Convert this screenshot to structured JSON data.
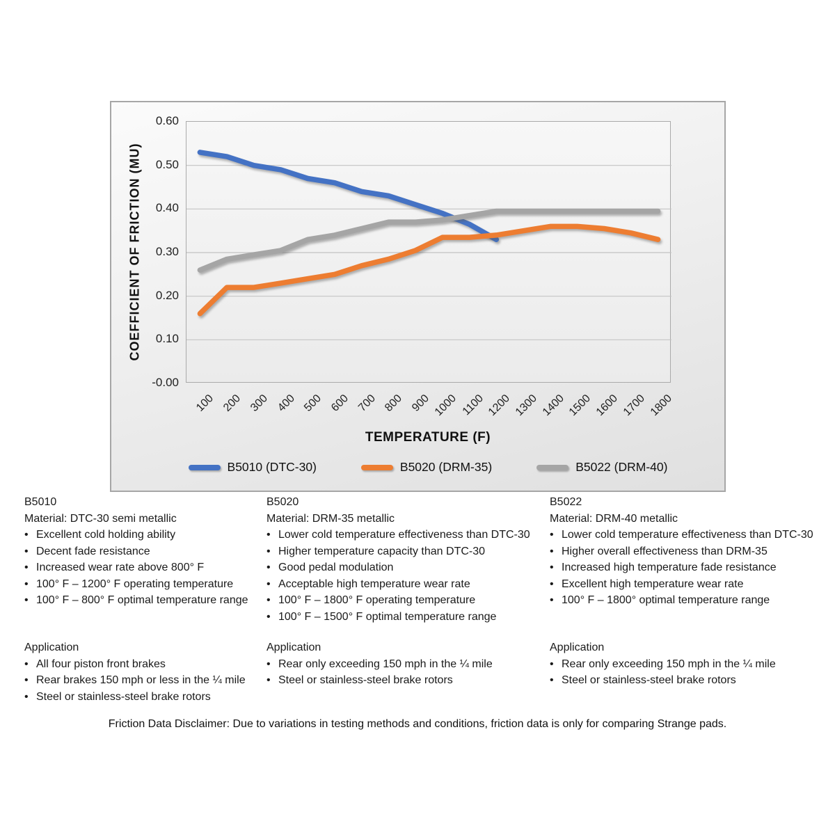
{
  "chart_data": {
    "type": "line",
    "title": "",
    "xlabel": "TEMPERATURE (F)",
    "ylabel": "COEFFICIENT OF FRICTION (MU)",
    "ylim": [
      0,
      0.6
    ],
    "ytick_step": 0.1,
    "grid": true,
    "legend_position": "bottom",
    "categories": [
      "100",
      "200",
      "300",
      "400",
      "500",
      "600",
      "700",
      "800",
      "900",
      "1000",
      "1100",
      "1200",
      "1300",
      "1400",
      "1500",
      "1600",
      "1700",
      "1800"
    ],
    "series": [
      {
        "name": "B5010 (DTC-30)",
        "color": "#4472C4",
        "values": [
          0.53,
          0.52,
          0.5,
          0.49,
          0.47,
          0.46,
          0.44,
          0.43,
          0.41,
          0.39,
          0.365,
          0.33,
          null,
          null,
          null,
          null,
          null,
          null
        ]
      },
      {
        "name": "B5020 (DRM-35)",
        "color": "#ED7D31",
        "values": [
          0.16,
          0.22,
          0.22,
          0.23,
          0.24,
          0.25,
          0.27,
          0.285,
          0.305,
          0.335,
          0.335,
          0.34,
          0.35,
          0.36,
          0.36,
          0.355,
          0.345,
          0.33
        ]
      },
      {
        "name": "B5022 (DRM-40)",
        "color": "#A5A5A5",
        "values": [
          0.26,
          0.285,
          0.295,
          0.305,
          0.33,
          0.34,
          0.355,
          0.37,
          0.37,
          0.375,
          0.385,
          0.395,
          0.395,
          0.395,
          0.395,
          0.395,
          0.395,
          0.395
        ]
      }
    ]
  },
  "products": [
    {
      "id": "B5010",
      "material": "Material: DTC-30 semi metallic",
      "features": [
        "Excellent cold holding ability",
        "Decent fade resistance",
        "Increased wear rate above 800° F",
        "100° F – 1200° F operating temperature",
        "100° F – 800° F optimal temperature range"
      ],
      "application_title": "Application",
      "applications": [
        "All four piston front brakes",
        "Rear brakes 150 mph or less in the ¼ mile",
        "Steel or stainless-steel brake rotors"
      ]
    },
    {
      "id": "B5020",
      "material": "Material: DRM-35 metallic",
      "features": [
        "Lower cold temperature effectiveness than DTC-30",
        "Higher temperature capacity than DTC-30",
        "Good pedal modulation",
        "Acceptable high temperature wear rate",
        "100° F – 1800° F operating temperature",
        "100° F – 1500° F optimal temperature range"
      ],
      "application_title": "Application",
      "applications": [
        "Rear only exceeding 150 mph in the ¼ mile",
        "Steel or stainless-steel brake rotors"
      ]
    },
    {
      "id": "B5022",
      "material": "Material: DRM-40 metallic",
      "features": [
        "Lower cold temperature effectiveness than DTC-30",
        "Higher overall effectiveness than DRM-35",
        "Increased high temperature fade resistance",
        "Excellent high temperature wear rate",
        "100° F – 1800° optimal temperature range"
      ],
      "application_title": "Application",
      "applications": [
        "Rear only exceeding 150 mph in the ¼ mile",
        "Steel or stainless-steel brake rotors"
      ]
    }
  ],
  "footer": {
    "disclaimer": "Friction Data Disclaimer:  Due to variations in testing methods and conditions, friction data is only for comparing Strange pads."
  }
}
